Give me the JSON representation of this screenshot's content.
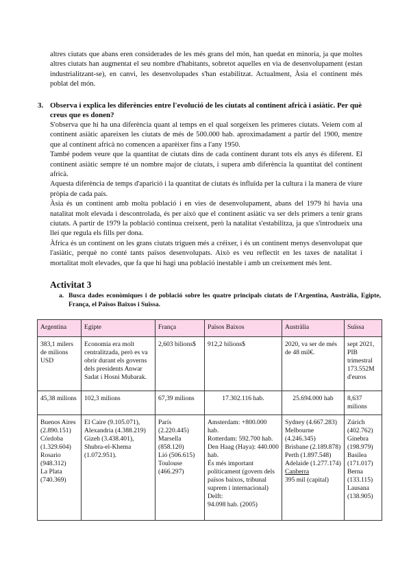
{
  "intro_paragraph": "altres ciutats que abans eren considerades de les més grans del món, han quedat en minoria, ja que moltes altres ciutats han augmentat el seu nombre d'habitants, sobretot aquelles en via de desenvolupament (estan industrialitzant-se), en canvi, les desenvolupades s'han estabilitzat. Actualment, Àsia el continent més poblat del món.",
  "question3": {
    "number": "3.",
    "text": "Observa i explica les diferències entre l'evolució de les ciutats al continent africà i asiàtic. Per què creus que es donen?"
  },
  "answer_paragraphs": [
    "S'observa que hi ha una diferència quant al temps en el qual sorgeixen les primeres ciutats. Veiem com al continent asiàtic apareixen les ciutats de més de 500.000 hab. aproximadament a partir del 1900, mentre que al continent africà no comencen a aparèixer fins a l'any 1950.",
    "També podem veure que la quantitat de ciutats dins de cada continent durant tots els anys és diferent. El continent asiàtic sempre té un nombre major de ciutats, i supera amb diferència la quantitat del continent africà.",
    "Aquesta diferència de temps d'aparició i la quantitat de ciutats és influïda per la cultura i la manera de viure pròpia de cada país.",
    "Àsia és un continent amb molta població i en vies de desenvolupament, abans del 1979 hi havia una natalitat molt elevada i descontrolada, és per això que el continent asiàtic va ser dels primers a tenir grans ciutats. A partir de 1979 la població continua creixent, però la natalitat s'estabilitza, ja que s'introdueix una llei que regula els fills per dona.",
    "Àfrica és un continent on les grans ciutats triguen més a créixer, i és un continent menys desenvolupat que l'asiàtic, perquè no conté tants països desenvolupats. Això es veu reflectit en les taxes de natalitat i mortalitat molt elevades, que fa que hi hagi una població inestable i amb un creixement més lent."
  ],
  "activity": {
    "title": "Activitat 3",
    "item_letter": "a.",
    "item_text": "Busca dades econòmiques i de població sobre les quatre principals ciutats de l'Argentina, Austràlia, Egipte, França, el Països Baixos i Suïssa."
  },
  "table": {
    "header_color": "#fcd7ea",
    "headers": [
      "Argentina",
      "Egipte",
      "França",
      "Països Baixos",
      "Austràlia",
      "Suïssa"
    ],
    "economy": [
      "383,1 milers de milions USD",
      "Economia era molt centralitzada, però es va obrir durant els governs dels presidents Anwar Sadat i Hosni Mubarak.",
      "2,603 bilions$",
      "912,2 bilions$",
      "2020, va ser de més de 48 mil€.",
      "sept 2021, PIB trimestral 173.552M d'euros"
    ],
    "population": [
      "45,38 milions",
      "102,3 milions",
      "67,39 milions",
      "17.302.116 hab.",
      "25.694.000 hab",
      "8,637 milions"
    ],
    "cities": {
      "argentina": [
        "Buenos Aires (2.890.151)",
        "Córdoba (1.329.604)",
        "Rosario (948.312)",
        "La Plata (740.369)"
      ],
      "egipte": "El Caire (9.105.071), Alexandria (4.388.219) Gizeh (3.438.401), Shubra-el-Khema (1.072.951).",
      "franca": [
        "París (2.220.445)",
        "Marsella (858.120)",
        "Lió (506.615)",
        "Toulouse (466.297)"
      ],
      "paisos_baixos": [
        "Amsterdam: +800.000 hab.",
        "Rotterdam: 592.700 hab.",
        "Den Haag (Haya): 440.000 hab.",
        "És més important políticament (govern dels països baixos, tribunal suprem i internacional)",
        "Delft:",
        "94.098 hab. (2005)"
      ],
      "australia": [
        "Sydney (4.667.283)",
        "Melbourne (4.246.345)",
        "Brisbane (2.189.878)",
        "Perth (1.897.548)",
        "Adelaide (1.277.174)"
      ],
      "australia_capital": "Canberra",
      "australia_capital_pop": "395 mil (capital)",
      "suissa": [
        "Zúrich (402.762)",
        "Ginebra (198.979)",
        "Basilea (171.017)",
        "Berna (133.115)",
        "Lausana (138.905)"
      ]
    }
  }
}
